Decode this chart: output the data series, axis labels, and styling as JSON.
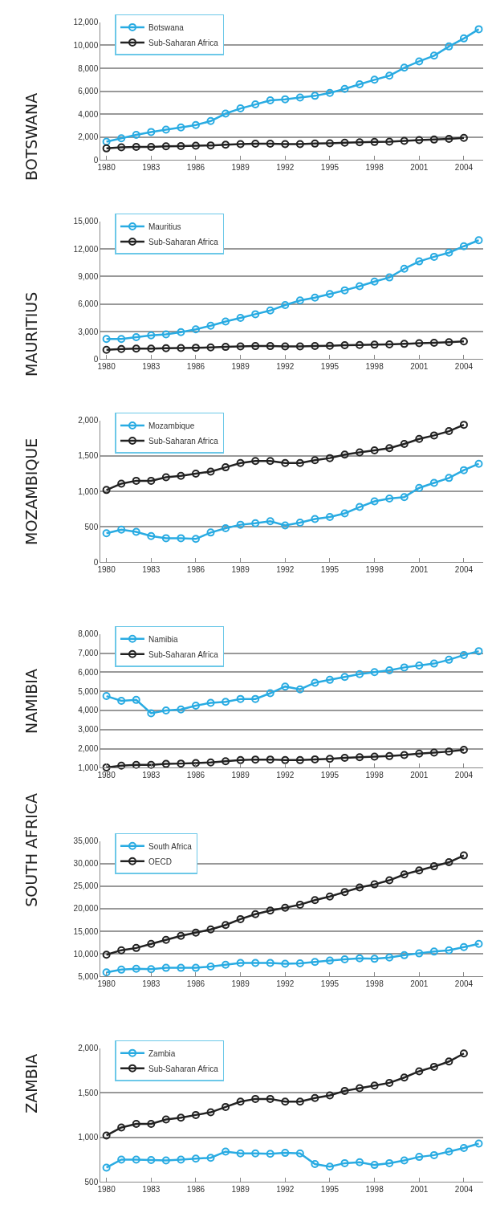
{
  "chart_data": [
    {
      "type": "line",
      "ylabel": "BOTSWANA",
      "legend": "top left",
      "grid": "y",
      "marker": "circle",
      "xlim": [
        1979.6,
        2005.3
      ],
      "xticks": [
        1980,
        1983,
        1986,
        1989,
        1992,
        1995,
        1998,
        2001,
        2004
      ],
      "ylim": [
        0,
        12000
      ],
      "yticks": [
        {
          "value": 0,
          "label": "0"
        },
        {
          "value": 2000,
          "label": "2,000"
        },
        {
          "value": 4000,
          "label": "4,000"
        },
        {
          "value": 6000,
          "label": "6,000"
        },
        {
          "value": 8000,
          "label": "8,000"
        },
        {
          "value": 10000,
          "label": "10,000"
        },
        {
          "value": 12000,
          "label": "12,000"
        }
      ],
      "series": [
        {
          "name": "Botswana",
          "color": "#29abe2",
          "x": [
            1980,
            1981,
            1982,
            1983,
            1984,
            1985,
            1986,
            1987,
            1988,
            1989,
            1990,
            1991,
            1992,
            1993,
            1994,
            1995,
            1996,
            1997,
            1998,
            1999,
            2000,
            2001,
            2002,
            2003,
            2004,
            2005
          ],
          "values": [
            1600,
            1900,
            2200,
            2450,
            2650,
            2850,
            3050,
            3400,
            4050,
            4500,
            4850,
            5200,
            5300,
            5450,
            5600,
            5850,
            6200,
            6600,
            7000,
            7350,
            8050,
            8600,
            9100,
            9900,
            10600,
            11400
          ]
        },
        {
          "name": "Sub-Saharan Africa",
          "color": "#222222",
          "x": [
            1980,
            1981,
            1982,
            1983,
            1984,
            1985,
            1986,
            1987,
            1988,
            1989,
            1990,
            1991,
            1992,
            1993,
            1994,
            1995,
            1996,
            1997,
            1998,
            1999,
            2000,
            2001,
            2002,
            2003,
            2004
          ],
          "values": [
            1020,
            1110,
            1150,
            1150,
            1200,
            1220,
            1250,
            1280,
            1340,
            1400,
            1430,
            1430,
            1400,
            1400,
            1440,
            1470,
            1520,
            1550,
            1580,
            1610,
            1670,
            1740,
            1790,
            1850,
            1940
          ]
        }
      ]
    },
    {
      "type": "line",
      "ylabel": "MAURITIUS",
      "legend": "top left",
      "grid": "y",
      "marker": "circle",
      "xlim": [
        1979.6,
        2005.3
      ],
      "xticks": [
        1980,
        1983,
        1986,
        1989,
        1992,
        1995,
        1998,
        2001,
        2004
      ],
      "ylim": [
        0,
        15000
      ],
      "yticks": [
        {
          "value": 0,
          "label": "0"
        },
        {
          "value": 3000,
          "label": "3,000"
        },
        {
          "value": 6000,
          "label": "6,000"
        },
        {
          "value": 9000,
          "label": "9,000"
        },
        {
          "value": 12000,
          "label": "12,000"
        },
        {
          "value": 15000,
          "label": "15,000"
        }
      ],
      "series": [
        {
          "name": "Mauritius",
          "color": "#29abe2",
          "x": [
            1980,
            1981,
            1982,
            1983,
            1984,
            1985,
            1986,
            1987,
            1988,
            1989,
            1990,
            1991,
            1992,
            1993,
            1994,
            1995,
            1996,
            1997,
            1998,
            1999,
            2000,
            2001,
            2002,
            2003,
            2004,
            2005
          ],
          "values": [
            2200,
            2200,
            2400,
            2600,
            2700,
            2950,
            3250,
            3650,
            4100,
            4500,
            4900,
            5300,
            5900,
            6400,
            6700,
            7100,
            7500,
            7950,
            8450,
            8900,
            9850,
            10650,
            11150,
            11600,
            12300,
            12950
          ]
        },
        {
          "name": "Sub-Saharan Africa",
          "color": "#222222",
          "x": [
            1980,
            1981,
            1982,
            1983,
            1984,
            1985,
            1986,
            1987,
            1988,
            1989,
            1990,
            1991,
            1992,
            1993,
            1994,
            1995,
            1996,
            1997,
            1998,
            1999,
            2000,
            2001,
            2002,
            2003,
            2004
          ],
          "values": [
            1020,
            1110,
            1150,
            1150,
            1200,
            1220,
            1250,
            1280,
            1340,
            1400,
            1430,
            1430,
            1400,
            1400,
            1440,
            1470,
            1520,
            1550,
            1580,
            1610,
            1670,
            1740,
            1790,
            1850,
            1940
          ]
        }
      ]
    },
    {
      "type": "line",
      "ylabel": "MOZAMBIQUE",
      "legend": "top left",
      "grid": "y",
      "marker": "circle",
      "xlim": [
        1979.6,
        2005.3
      ],
      "xticks": [
        1980,
        1983,
        1986,
        1989,
        1992,
        1995,
        1998,
        2001,
        2004
      ],
      "ylim": [
        0,
        2000
      ],
      "yticks": [
        {
          "value": 0,
          "label": "0"
        },
        500,
        {
          "value": 1000,
          "label": "1,000"
        },
        {
          "value": 1500,
          "label": "1,500"
        },
        {
          "value": 2000,
          "label": "2,000"
        }
      ],
      "series": [
        {
          "name": "Mozambique",
          "color": "#29abe2",
          "x": [
            1980,
            1981,
            1982,
            1983,
            1984,
            1985,
            1986,
            1987,
            1988,
            1989,
            1990,
            1991,
            1992,
            1993,
            1994,
            1995,
            1996,
            1997,
            1998,
            1999,
            2000,
            2001,
            2002,
            2003,
            2004,
            2005
          ],
          "values": [
            410,
            460,
            430,
            370,
            340,
            340,
            330,
            420,
            480,
            530,
            550,
            580,
            520,
            560,
            610,
            640,
            690,
            780,
            860,
            900,
            920,
            1050,
            1120,
            1190,
            1300,
            1390
          ]
        },
        {
          "name": "Sub-Saharan Africa",
          "color": "#222222",
          "x": [
            1980,
            1981,
            1982,
            1983,
            1984,
            1985,
            1986,
            1987,
            1988,
            1989,
            1990,
            1991,
            1992,
            1993,
            1994,
            1995,
            1996,
            1997,
            1998,
            1999,
            2000,
            2001,
            2002,
            2003,
            2004
          ],
          "values": [
            1020,
            1110,
            1150,
            1150,
            1200,
            1220,
            1250,
            1280,
            1340,
            1400,
            1430,
            1430,
            1400,
            1400,
            1440,
            1470,
            1520,
            1550,
            1580,
            1610,
            1670,
            1740,
            1790,
            1850,
            1940
          ]
        }
      ]
    },
    {
      "type": "line",
      "ylabel": "NAMIBIA",
      "legend": "top left",
      "grid": "y",
      "marker": "circle",
      "xlim": [
        1979.6,
        2005.3
      ],
      "xticks": [
        1980,
        1983,
        1986,
        1989,
        1992,
        1995,
        1998,
        2001,
        2004
      ],
      "ylim": [
        1000,
        8000
      ],
      "yticks": [
        {
          "value": 1000,
          "label": "1,000"
        },
        {
          "value": 2000,
          "label": "2,000"
        },
        {
          "value": 3000,
          "label": "3,000"
        },
        {
          "value": 4000,
          "label": "4,000"
        },
        {
          "value": 5000,
          "label": "5,000"
        },
        {
          "value": 6000,
          "label": "6,000"
        },
        {
          "value": 7000,
          "label": "7,000"
        },
        {
          "value": 8000,
          "label": "8,000"
        }
      ],
      "series": [
        {
          "name": "Namibia",
          "color": "#29abe2",
          "x": [
            1980,
            1981,
            1982,
            1983,
            1984,
            1985,
            1986,
            1987,
            1988,
            1989,
            1990,
            1991,
            1992,
            1993,
            1994,
            1995,
            1996,
            1997,
            1998,
            1999,
            2000,
            2001,
            2002,
            2003,
            2004,
            2005
          ],
          "values": [
            4750,
            4500,
            4550,
            3850,
            4000,
            4050,
            4250,
            4400,
            4450,
            4600,
            4600,
            4900,
            5250,
            5100,
            5450,
            5600,
            5750,
            5900,
            6000,
            6100,
            6250,
            6350,
            6450,
            6650,
            6900,
            7100
          ]
        },
        {
          "name": "Sub-Saharan Africa",
          "color": "#222222",
          "x": [
            1980,
            1981,
            1982,
            1983,
            1984,
            1985,
            1986,
            1987,
            1988,
            1989,
            1990,
            1991,
            1992,
            1993,
            1994,
            1995,
            1996,
            1997,
            1998,
            1999,
            2000,
            2001,
            2002,
            2003,
            2004
          ],
          "values": [
            1020,
            1110,
            1150,
            1150,
            1200,
            1220,
            1250,
            1280,
            1340,
            1400,
            1430,
            1430,
            1400,
            1400,
            1440,
            1470,
            1520,
            1550,
            1580,
            1610,
            1670,
            1740,
            1790,
            1850,
            1940
          ]
        }
      ]
    },
    {
      "type": "line",
      "ylabel": "SOUTH AFRICA",
      "legend": "top left",
      "grid": "y",
      "marker": "circle",
      "xlim": [
        1979.6,
        2005.3
      ],
      "xticks": [
        1980,
        1983,
        1986,
        1989,
        1992,
        1995,
        1998,
        2001,
        2004
      ],
      "ylim": [
        5000,
        35000
      ],
      "yticks": [
        {
          "value": 5000,
          "label": "5,000"
        },
        {
          "value": 10000,
          "label": "10,000"
        },
        {
          "value": 15000,
          "label": "15,000"
        },
        {
          "value": 20000,
          "label": "20,000"
        },
        {
          "value": 25000,
          "label": "25,000"
        },
        {
          "value": 30000,
          "label": "30,000"
        },
        {
          "value": 35000,
          "label": "35,000"
        }
      ],
      "series": [
        {
          "name": "South Africa",
          "color": "#29abe2",
          "x": [
            1980,
            1981,
            1982,
            1983,
            1984,
            1985,
            1986,
            1987,
            1988,
            1989,
            1990,
            1991,
            1992,
            1993,
            1994,
            1995,
            1996,
            1997,
            1998,
            1999,
            2000,
            2001,
            2002,
            2003,
            2004,
            2005
          ],
          "values": [
            5900,
            6500,
            6700,
            6600,
            6900,
            6900,
            6900,
            7200,
            7600,
            8000,
            8000,
            8000,
            7800,
            7900,
            8200,
            8500,
            8800,
            9000,
            8900,
            9200,
            9700,
            10100,
            10500,
            10800,
            11500,
            12200
          ]
        },
        {
          "name": "OECD",
          "color": "#222222",
          "x": [
            1980,
            1981,
            1982,
            1983,
            1984,
            1985,
            1986,
            1987,
            1988,
            1989,
            1990,
            1991,
            1992,
            1993,
            1994,
            1995,
            1996,
            1997,
            1998,
            1999,
            2000,
            2001,
            2002,
            2003,
            2004
          ],
          "values": [
            9800,
            10800,
            11300,
            12200,
            13100,
            14000,
            14700,
            15400,
            16400,
            17700,
            18800,
            19600,
            20200,
            20900,
            21900,
            22700,
            23700,
            24700,
            25400,
            26300,
            27600,
            28500,
            29400,
            30300,
            31800
          ]
        }
      ]
    },
    {
      "type": "line",
      "ylabel": "ZAMBIA",
      "legend": "top left",
      "grid": "y",
      "marker": "circle",
      "xlim": [
        1979.6,
        2005.3
      ],
      "xticks": [
        1980,
        1983,
        1986,
        1989,
        1992,
        1995,
        1998,
        2001,
        2004
      ],
      "ylim": [
        500,
        2000
      ],
      "yticks": [
        500,
        {
          "value": 1000,
          "label": "1,000"
        },
        {
          "value": 1500,
          "label": "1,500"
        },
        {
          "value": 2000,
          "label": "2,000"
        }
      ],
      "series": [
        {
          "name": "Zambia",
          "color": "#29abe2",
          "x": [
            1980,
            1981,
            1982,
            1983,
            1984,
            1985,
            1986,
            1987,
            1988,
            1989,
            1990,
            1991,
            1992,
            1993,
            1994,
            1995,
            1996,
            1997,
            1998,
            1999,
            2000,
            2001,
            2002,
            2003,
            2004,
            2005
          ],
          "values": [
            660,
            750,
            750,
            745,
            740,
            750,
            760,
            770,
            840,
            820,
            820,
            815,
            825,
            820,
            700,
            670,
            710,
            720,
            690,
            710,
            740,
            780,
            800,
            840,
            880,
            930
          ]
        },
        {
          "name": "Sub-Saharan Africa",
          "color": "#222222",
          "x": [
            1980,
            1981,
            1982,
            1983,
            1984,
            1985,
            1986,
            1987,
            1988,
            1989,
            1990,
            1991,
            1992,
            1993,
            1994,
            1995,
            1996,
            1997,
            1998,
            1999,
            2000,
            2001,
            2002,
            2003,
            2004
          ],
          "values": [
            1020,
            1110,
            1150,
            1150,
            1200,
            1220,
            1250,
            1280,
            1340,
            1400,
            1430,
            1430,
            1400,
            1400,
            1440,
            1470,
            1520,
            1550,
            1580,
            1610,
            1670,
            1740,
            1790,
            1850,
            1940
          ]
        }
      ]
    }
  ]
}
